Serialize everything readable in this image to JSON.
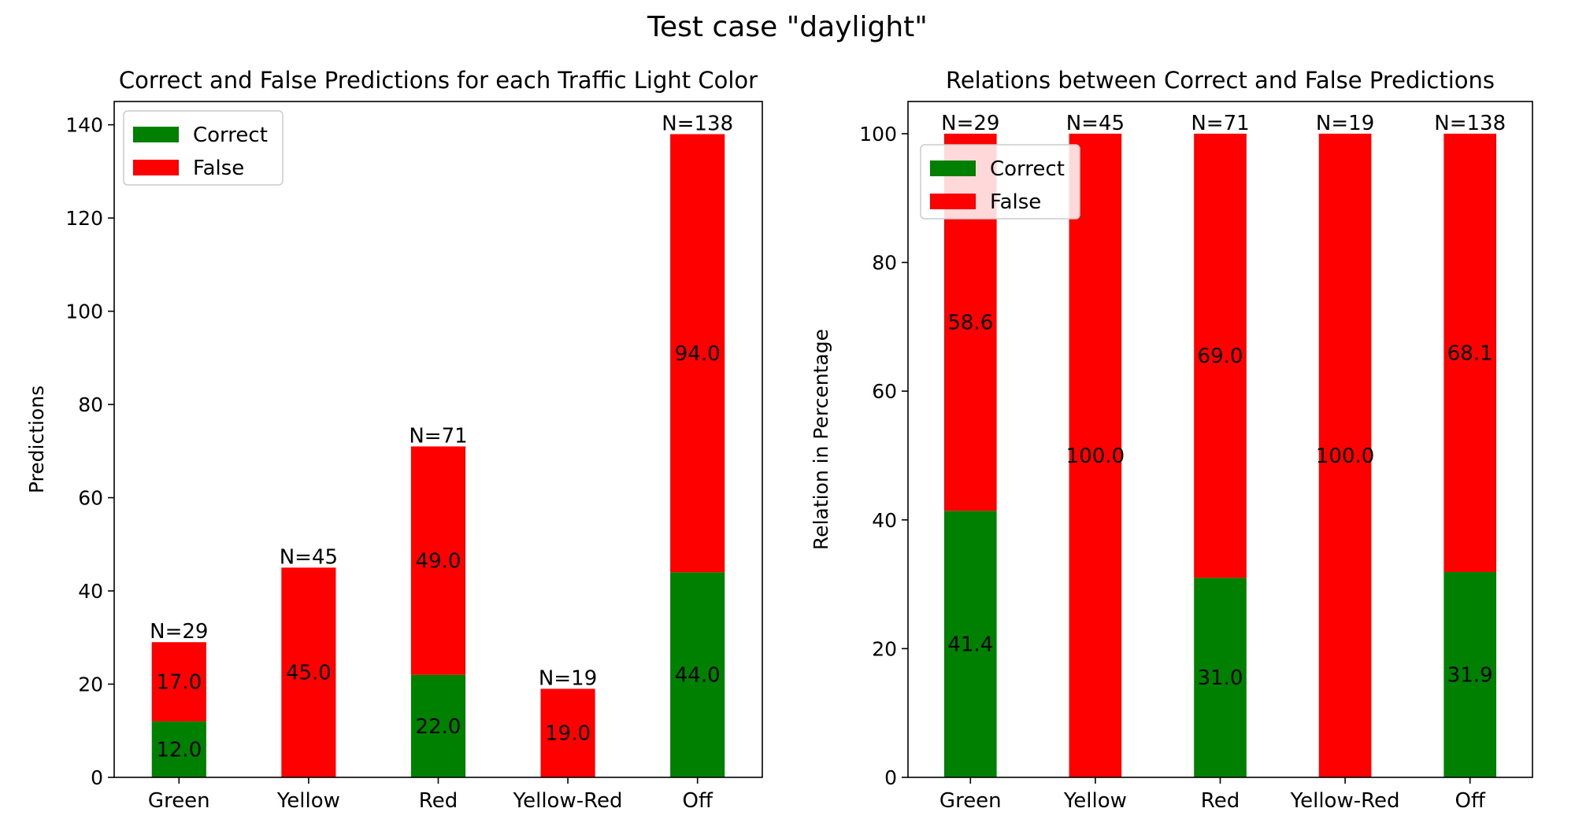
{
  "figure": {
    "suptitle": "Test case \"daylight\""
  },
  "chart_data": [
    {
      "type": "bar",
      "stacked": true,
      "title": "Correct and False Predictions for each Traffic Light Color",
      "xlabel": "",
      "ylabel": "Predictions",
      "ylim": [
        0,
        145
      ],
      "yticks": [
        0,
        20,
        40,
        60,
        80,
        100,
        120,
        140
      ],
      "categories": [
        "Green",
        "Yellow",
        "Red",
        "Yellow-Red",
        "Off"
      ],
      "series": [
        {
          "name": "Correct",
          "color": "#008000",
          "values": [
            12,
            0,
            22,
            0,
            44
          ],
          "labels": [
            "12.0",
            "",
            "22.0",
            "",
            "44.0"
          ]
        },
        {
          "name": "False",
          "color": "#ff0000",
          "values": [
            17,
            45,
            49,
            19,
            94
          ],
          "labels": [
            "17.0",
            "45.0",
            "49.0",
            "19.0",
            "94.0"
          ]
        }
      ],
      "totals": [
        "N=29",
        "N=45",
        "N=71",
        "N=19",
        "N=138"
      ],
      "grid": false,
      "legend": "top-left"
    },
    {
      "type": "bar",
      "stacked": true,
      "title": "Relations between Correct and False Predictions",
      "xlabel": "",
      "ylabel": "Relation in Percentage",
      "ylim": [
        0,
        105
      ],
      "yticks": [
        0,
        20,
        40,
        60,
        80,
        100
      ],
      "categories": [
        "Green",
        "Yellow",
        "Red",
        "Yellow-Red",
        "Off"
      ],
      "series": [
        {
          "name": "Correct",
          "color": "#008000",
          "values": [
            41.4,
            0,
            31.0,
            0,
            31.9
          ],
          "labels": [
            "41.4",
            "",
            "31.0",
            "",
            "31.9"
          ]
        },
        {
          "name": "False",
          "color": "#ff0000",
          "values": [
            58.6,
            100,
            69.0,
            100,
            68.1
          ],
          "labels": [
            "58.6",
            "100.0",
            "69.0",
            "100.0",
            "68.1"
          ]
        }
      ],
      "totals": [
        "N=29",
        "N=45",
        "N=71",
        "N=19",
        "N=138"
      ],
      "grid": false,
      "legend": "top-left"
    }
  ]
}
